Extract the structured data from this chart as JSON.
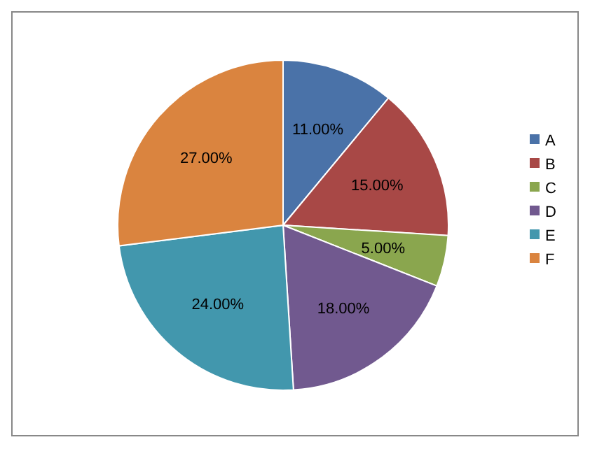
{
  "chart_data": {
    "type": "pie",
    "categories": [
      "A",
      "B",
      "C",
      "D",
      "E",
      "F"
    ],
    "values": [
      11,
      15,
      5,
      18,
      24,
      27
    ],
    "colors": [
      "#4a72a8",
      "#a84846",
      "#8aa64e",
      "#71598f",
      "#4297ad",
      "#da843f"
    ],
    "value_labels": [
      "11.00%",
      "15.00%",
      "5.00%",
      "18.00%",
      "24.00%",
      "27.00%"
    ],
    "legend": "right"
  }
}
